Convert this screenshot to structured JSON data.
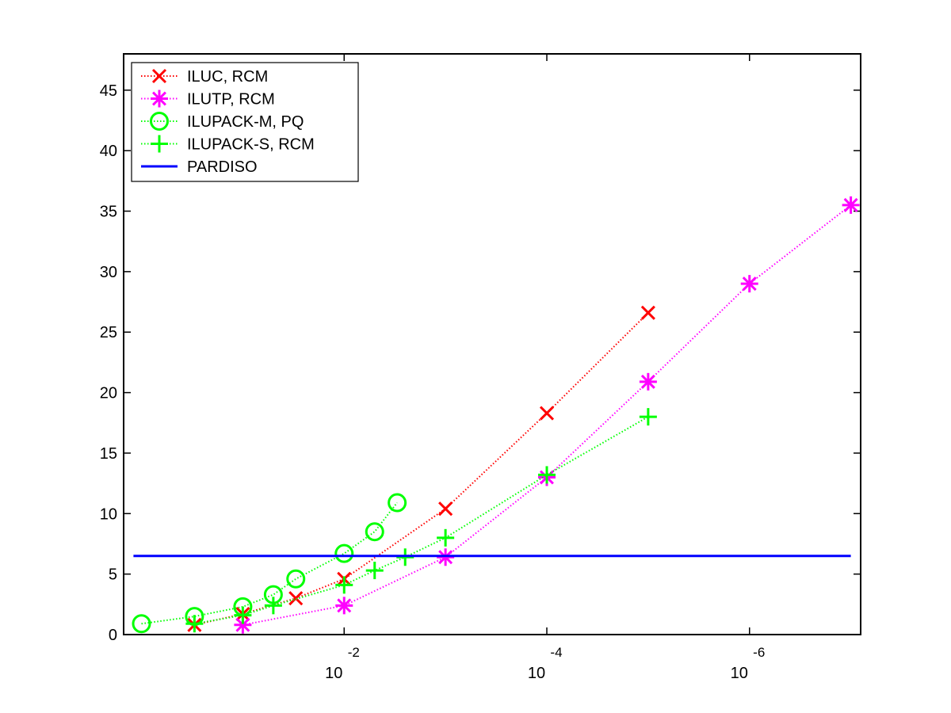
{
  "chart_data": {
    "type": "line",
    "title": "",
    "xlabel": "",
    "ylabel": "",
    "x_scale": "log-reversed",
    "xlim": [
      1.5,
      8e-08
    ],
    "ylim": [
      0,
      48
    ],
    "x_ticks": [
      {
        "value": 0.01,
        "base": "10",
        "exp": "-2"
      },
      {
        "value": 0.0001,
        "base": "10",
        "exp": "-4"
      },
      {
        "value": 1e-06,
        "base": "10",
        "exp": "-6"
      }
    ],
    "y_ticks": [
      "0",
      "5",
      "10",
      "15",
      "20",
      "25",
      "30",
      "35",
      "40",
      "45"
    ],
    "grid": false,
    "legend_position": "top-left",
    "series": [
      {
        "name": "ILUC, RCM",
        "color": "#ff0000",
        "marker": "x-cross",
        "line": "dotted",
        "x": [
          0.3,
          0.1,
          0.03,
          0.01,
          0.001,
          0.0001,
          1e-05
        ],
        "y": [
          0.8,
          1.7,
          3.0,
          4.6,
          10.4,
          18.3,
          26.6
        ]
      },
      {
        "name": "ILUTP, RCM",
        "color": "#ff00ff",
        "marker": "asterisk",
        "line": "dotted",
        "x": [
          0.1,
          0.01,
          0.001,
          0.0001,
          1e-05,
          1e-06,
          1e-07
        ],
        "y": [
          0.8,
          2.4,
          6.4,
          13.0,
          20.9,
          29.0,
          35.5
        ]
      },
      {
        "name": "ILUPACK-M, PQ",
        "color": "#00ff00",
        "marker": "circle",
        "line": "dotted",
        "x": [
          1,
          0.3,
          0.1,
          0.05,
          0.03,
          0.01,
          0.005,
          0.003
        ],
        "y": [
          0.9,
          1.5,
          2.3,
          3.3,
          4.6,
          6.7,
          8.5,
          10.9
        ]
      },
      {
        "name": "ILUPACK-S, RCM",
        "color": "#00ff00",
        "marker": "plus",
        "line": "dotted",
        "x": [
          0.3,
          0.1,
          0.05,
          0.01,
          0.005,
          0.0025,
          0.001,
          0.0001,
          1e-05
        ],
        "y": [
          0.9,
          1.6,
          2.4,
          4.1,
          5.3,
          6.4,
          8.0,
          13.2,
          18.0
        ]
      },
      {
        "name": "PARDISO",
        "color": "#0000ff",
        "marker": "none",
        "line": "solid",
        "x": [
          1.2,
          1e-07
        ],
        "y": [
          6.5,
          6.5
        ]
      }
    ]
  }
}
